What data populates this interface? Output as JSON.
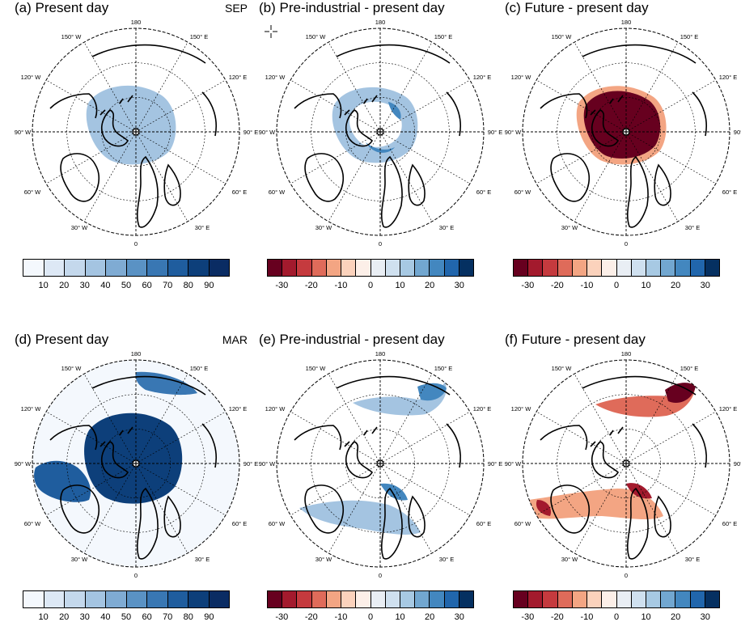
{
  "panels": [
    {
      "title": "(a) Present day",
      "season": "SEP",
      "kind": "abs",
      "shape": "sep_abs"
    },
    {
      "title": "(b) Pre-industrial - present day",
      "season": "",
      "kind": "diff",
      "shape": "sep_pre"
    },
    {
      "title": "(c) Future - present day",
      "season": "",
      "kind": "diff",
      "shape": "sep_fut"
    },
    {
      "title": "(d) Present day",
      "season": "MAR",
      "kind": "abs",
      "shape": "mar_abs"
    },
    {
      "title": "(e) Pre-industrial - present day",
      "season": "",
      "kind": "diff",
      "shape": "mar_pre"
    },
    {
      "title": "(f) Future - present day",
      "season": "",
      "kind": "diff",
      "shape": "mar_fut"
    }
  ],
  "lon_labels": {
    "top": "180",
    "bottom": "0",
    "left": "90° W",
    "right": "90° E",
    "ul1": "150° W",
    "ul2": "120° W",
    "ur1": "150° E",
    "ur2": "120° E",
    "ll1": "60° W",
    "ll2": "30° W",
    "lr1": "60° E",
    "lr2": "30° E"
  },
  "colorbar_abs": {
    "colors": [
      "#f4f8fd",
      "#dde8f5",
      "#c4d8ec",
      "#a4c4e1",
      "#7fabd3",
      "#5a92c4",
      "#3977b3",
      "#1f5d9e",
      "#0d3f7a",
      "#0a2c63"
    ],
    "ticks": [
      "10",
      "20",
      "30",
      "40",
      "50",
      "60",
      "70",
      "80",
      "90"
    ]
  },
  "colorbar_diff": {
    "colors": [
      "#67001f",
      "#a31a2d",
      "#c53a3e",
      "#df6b5a",
      "#f3a583",
      "#fbd2bc",
      "#fcefe8",
      "#e9eef4",
      "#cfe0ef",
      "#a7c9e3",
      "#72a7d0",
      "#4387bf",
      "#2166ac",
      "#053061"
    ],
    "ticks": [
      "-30",
      "-20",
      "-10",
      "0",
      "10",
      "20",
      "30"
    ]
  }
}
